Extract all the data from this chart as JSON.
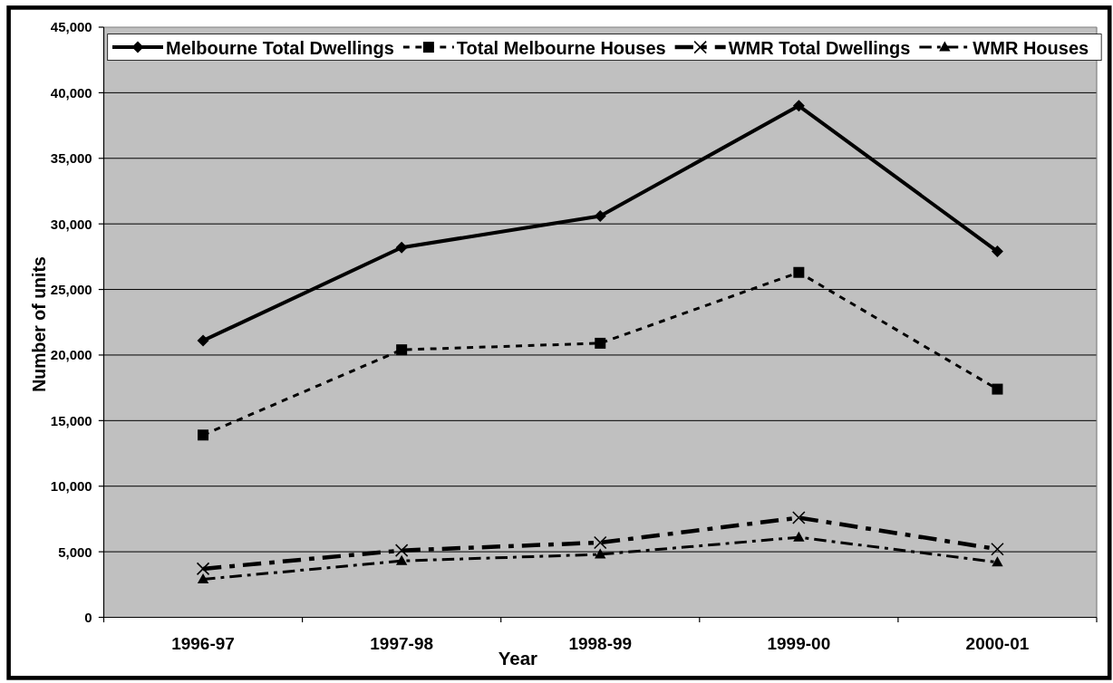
{
  "chart_data": {
    "type": "line",
    "xlabel": "Year",
    "ylabel": "Number of units",
    "categories": [
      "1996-97",
      "1997-98",
      "1998-99",
      "1999-00",
      "2000-01"
    ],
    "ylim": [
      0,
      45000
    ],
    "yticks": [
      0,
      {
        "value": 5000,
        "label": "5,000"
      },
      {
        "value": 10000,
        "label": "10,000"
      },
      {
        "value": 15000,
        "label": "15,000"
      },
      {
        "value": 20000,
        "label": "20,000"
      },
      {
        "value": 25000,
        "label": "25,000"
      },
      {
        "value": 30000,
        "label": "30,000"
      },
      {
        "value": 35000,
        "label": "35,000"
      },
      {
        "value": 40000,
        "label": "40,000"
      },
      {
        "value": 45000,
        "label": "45,000"
      }
    ],
    "grid": "y",
    "legend": "top",
    "series": [
      {
        "name": "Melbourne Total Dwellings",
        "color": "#000000",
        "marker": "diamond",
        "line_style": "solid",
        "values": [
          21100,
          28200,
          30600,
          39000,
          27900
        ]
      },
      {
        "name": "Total Melbourne Houses",
        "color": "#000000",
        "marker": "square",
        "line_style": "dotted",
        "values": [
          13900,
          20400,
          20900,
          26300,
          17400
        ]
      },
      {
        "name": "WMR Total Dwellings",
        "color": "#000000",
        "marker": "cross",
        "line_style": "dashdot",
        "values": [
          3700,
          5100,
          5700,
          7600,
          5200
        ]
      },
      {
        "name": "WMR Houses",
        "color": "#000000",
        "marker": "triangle",
        "line_style": "dashdot",
        "values": [
          2900,
          4300,
          4800,
          6100,
          4200
        ]
      }
    ]
  }
}
